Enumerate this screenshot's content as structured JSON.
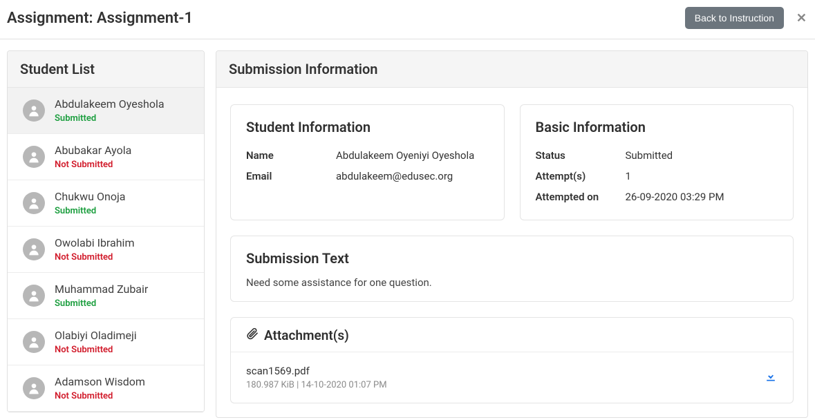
{
  "header": {
    "title": "Assignment: Assignment-1",
    "back_button": "Back to Instruction"
  },
  "sidebar": {
    "heading": "Student List",
    "items": [
      {
        "name": "Abdulakeem Oyeshola",
        "status": "Submitted",
        "submitted": true,
        "active": true
      },
      {
        "name": "Abubakar Ayola",
        "status": "Not Submitted",
        "submitted": false,
        "active": false
      },
      {
        "name": "Chukwu Onoja",
        "status": "Submitted",
        "submitted": true,
        "active": false
      },
      {
        "name": "Owolabi Ibrahim",
        "status": "Not Submitted",
        "submitted": false,
        "active": false
      },
      {
        "name": "Muhammad Zubair",
        "status": "Submitted",
        "submitted": true,
        "active": false
      },
      {
        "name": "Olabiyi Oladimeji",
        "status": "Not Submitted",
        "submitted": false,
        "active": false
      },
      {
        "name": "Adamson Wisdom",
        "status": "Not Submitted",
        "submitted": false,
        "active": false
      }
    ]
  },
  "main": {
    "heading": "Submission Information",
    "student_info": {
      "title": "Student Information",
      "name_label": "Name",
      "name_value": "Abdulakeem Oyeniyi Oyeshola",
      "email_label": "Email",
      "email_value": "abdulakeem@edusec.org"
    },
    "basic_info": {
      "title": "Basic Information",
      "status_label": "Status",
      "status_value": "Submitted",
      "attempts_label": "Attempt(s)",
      "attempts_value": "1",
      "attempted_on_label": "Attempted on",
      "attempted_on_value": "26-09-2020 03:29 PM"
    },
    "submission_text": {
      "title": "Submission Text",
      "body": "Need some assistance for one question."
    },
    "attachments": {
      "title": "Attachment(s)",
      "file_name": "scan1569.pdf",
      "file_meta": "180.987 KiB | 14-10-2020 01:07 PM"
    }
  },
  "colors": {
    "submitted": "#1b9e3e",
    "not_submitted": "#d11a2a",
    "back_btn_bg": "#6c757d",
    "download_icon": "#1a73e8",
    "border": "#e0e0e0",
    "panel_head_bg": "#f5f5f5"
  }
}
